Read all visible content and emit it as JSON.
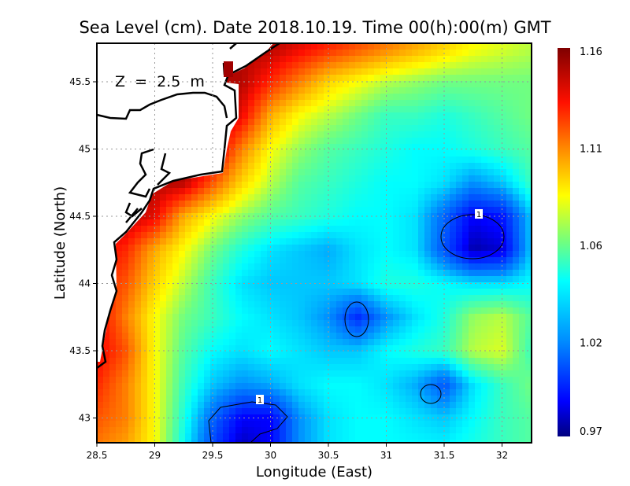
{
  "chart_data": {
    "type": "heatmap",
    "title": "Sea Level (cm). Date 2018.10.19. Time 00(h):00(m) GMT",
    "annotation": "Z  =  2.5  m",
    "xlabel": "Longitude (East)",
    "ylabel": "Latitude (North)",
    "xlim": [
      28.5,
      32.25
    ],
    "ylim": [
      42.8,
      45.8
    ],
    "x_ticks": [
      "28.5",
      "29",
      "29.5",
      "30",
      "30.5",
      "31",
      "31.5",
      "32"
    ],
    "x_tick_values": [
      28.5,
      29,
      29.5,
      30,
      30.5,
      31,
      31.5,
      32
    ],
    "y_ticks": [
      "43",
      "43.5",
      "44",
      "44.5",
      "45",
      "45.5"
    ],
    "y_tick_values": [
      43,
      43.5,
      44,
      44.5,
      45,
      45.5
    ],
    "grid": true,
    "colorbar": {
      "labels": [
        "1.16",
        "1.11",
        "1.06",
        "1.02",
        "0.97"
      ],
      "min": 0.97,
      "max": 1.16
    },
    "colormap": [
      [
        0.97,
        "#00007f"
      ],
      [
        0.985,
        "#0000ff"
      ],
      [
        1.02,
        "#0090ff"
      ],
      [
        1.04,
        "#00ffff"
      ],
      [
        1.06,
        "#70ff80"
      ],
      [
        1.08,
        "#ffff00"
      ],
      [
        1.11,
        "#ff8000"
      ],
      [
        1.135,
        "#ff1000"
      ],
      [
        1.16,
        "#7f0000"
      ]
    ],
    "contour_level_label": "1",
    "grid_lons": [
      28.5,
      28.75,
      29,
      29.25,
      29.5,
      29.75,
      30,
      30.25,
      30.5,
      30.75,
      31,
      31.25,
      31.5,
      31.75,
      32,
      32.25
    ],
    "grid_lats": [
      45.75,
      45.5,
      45.25,
      45.0,
      44.75,
      44.5,
      44.25,
      44.0,
      43.75,
      43.5,
      43.25,
      43.0,
      42.75
    ],
    "values": [
      [
        1.15,
        1.15,
        1.15,
        1.15,
        1.15,
        1.15,
        1.15,
        1.14,
        1.13,
        1.12,
        1.11,
        1.1,
        1.09,
        1.08,
        1.075,
        1.07
      ],
      [
        1.15,
        1.15,
        1.15,
        1.15,
        1.15,
        1.15,
        1.13,
        1.11,
        1.09,
        1.08,
        1.07,
        1.065,
        1.06,
        1.06,
        1.06,
        1.06
      ],
      [
        1.15,
        1.15,
        1.15,
        1.15,
        1.15,
        1.14,
        1.1,
        1.08,
        1.07,
        1.06,
        1.05,
        1.05,
        1.045,
        1.05,
        1.055,
        1.06
      ],
      [
        1.15,
        1.15,
        1.15,
        1.15,
        1.15,
        1.11,
        1.08,
        1.065,
        1.055,
        1.05,
        1.045,
        1.04,
        1.04,
        1.045,
        1.05,
        1.055
      ],
      [
        1.15,
        1.15,
        1.15,
        1.15,
        1.12,
        1.09,
        1.07,
        1.055,
        1.05,
        1.045,
        1.04,
        1.04,
        1.035,
        1.02,
        1.03,
        1.05
      ],
      [
        1.15,
        1.15,
        1.14,
        1.1,
        1.08,
        1.065,
        1.055,
        1.05,
        1.045,
        1.04,
        1.04,
        1.035,
        1.01,
        0.985,
        0.99,
        1.03
      ],
      [
        1.14,
        1.13,
        1.1,
        1.08,
        1.06,
        1.045,
        1.035,
        1.03,
        1.025,
        1.035,
        1.04,
        1.035,
        1.005,
        0.975,
        0.98,
        1.03
      ],
      [
        1.13,
        1.12,
        1.09,
        1.07,
        1.05,
        1.035,
        1.03,
        1.03,
        1.03,
        1.035,
        1.045,
        1.045,
        1.04,
        1.035,
        1.035,
        1.04
      ],
      [
        1.14,
        1.11,
        1.08,
        1.06,
        1.05,
        1.04,
        1.035,
        1.03,
        1.02,
        0.995,
        1.02,
        1.035,
        1.045,
        1.065,
        1.07,
        1.055
      ],
      [
        1.14,
        1.12,
        1.08,
        1.055,
        1.04,
        1.035,
        1.04,
        1.035,
        1.03,
        1.03,
        1.04,
        1.045,
        1.05,
        1.07,
        1.075,
        1.05
      ],
      [
        1.13,
        1.11,
        1.08,
        1.05,
        1.03,
        1.02,
        1.025,
        1.035,
        1.04,
        1.04,
        1.035,
        1.025,
        1.005,
        1.035,
        1.05,
        1.06
      ],
      [
        1.12,
        1.11,
        1.08,
        1.045,
        1.01,
        0.985,
        0.985,
        1.02,
        1.035,
        1.04,
        1.04,
        1.035,
        1.03,
        1.04,
        1.05,
        1.055
      ],
      [
        1.11,
        1.1,
        1.08,
        1.04,
        1.0,
        0.975,
        0.985,
        1.02,
        1.035,
        1.04,
        1.04,
        1.04,
        1.04,
        1.045,
        1.05,
        1.055
      ]
    ]
  }
}
